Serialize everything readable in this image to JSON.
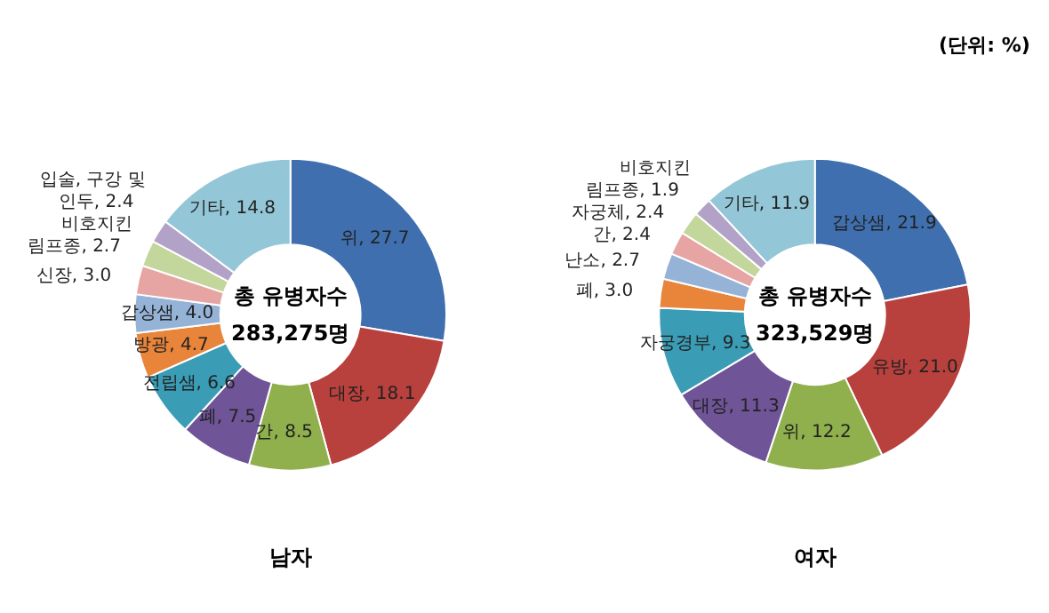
{
  "chart_data": [
    {
      "type": "donut",
      "title": "남자",
      "annotations": [
        "총 유병자수",
        "283,275명"
      ],
      "categories": [
        "위",
        "대장",
        "간",
        "폐",
        "전립샘",
        "방광",
        "갑상샘",
        "신장",
        "비호지킨 림프종",
        "입술, 구강 및 인두",
        "기타"
      ],
      "values": [
        27.7,
        18.1,
        8.5,
        7.5,
        6.6,
        4.7,
        4.0,
        3.0,
        2.7,
        2.4,
        14.8
      ],
      "value_labels": [
        ", 27.7",
        ", 18.1",
        ", 8.5",
        ", 7.5",
        ", 6.6",
        ", 4.7",
        ", 4.0",
        ", 3.0",
        ", 2.7",
        ", 2.4",
        ", 14.8"
      ],
      "colors": [
        "#3f6faf",
        "#b8403d",
        "#8fb04c",
        "#6f5497",
        "#3a9cb5",
        "#e8853a",
        "#95b3d7",
        "#e6a5a3",
        "#c3d69b",
        "#b3a2c7",
        "#93c6d6"
      ]
    },
    {
      "type": "donut",
      "title": "여자",
      "annotations": [
        "총 유병자수",
        "323,529명",
        "(단위: %)"
      ],
      "categories": [
        "갑상샘",
        "유방",
        "위",
        "대장",
        "자궁경부",
        "폐",
        "난소",
        "간",
        "자궁체",
        "비호지킨 림프종",
        "기타"
      ],
      "values": [
        21.9,
        21.0,
        12.2,
        11.3,
        9.3,
        3.0,
        2.7,
        2.4,
        2.4,
        1.9,
        11.9
      ],
      "value_labels": [
        ", 21.9",
        ", 21.0",
        ", 12.2",
        ", 11.3",
        ", 9.3",
        ", 3.0",
        ", 2.7",
        ", 2.4",
        ", 2.4",
        ", 1.9",
        ", 11.9"
      ],
      "colors": [
        "#3f6faf",
        "#b8403d",
        "#8fb04c",
        "#6f5497",
        "#3a9cb5",
        "#e8853a",
        "#95b3d7",
        "#e6a5a3",
        "#c3d69b",
        "#b3a2c7",
        "#93c6d6"
      ]
    }
  ]
}
